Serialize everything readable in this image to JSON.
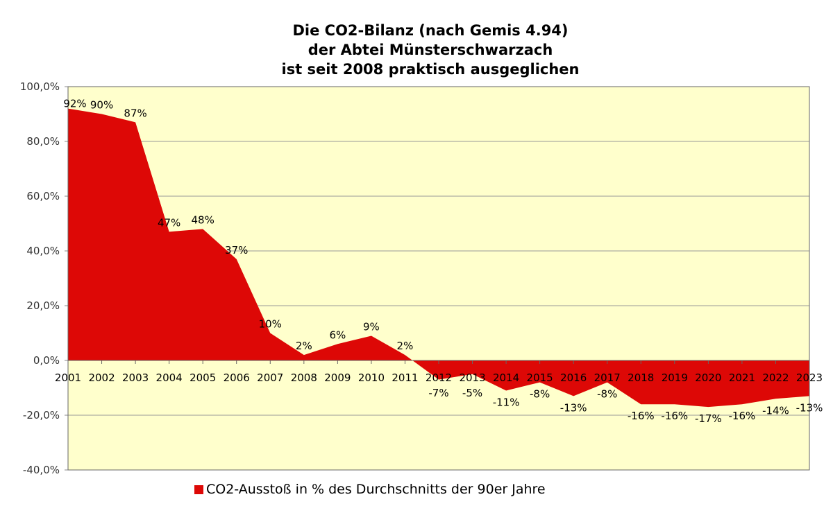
{
  "chart_data": {
    "type": "area",
    "title": [
      "Die CO2-Bilanz (nach Gemis 4.94)",
      "der Abtei Münsterschwarzach",
      "ist seit 2008 praktisch ausgeglichen"
    ],
    "categories": [
      "2001",
      "2002",
      "2003",
      "2004",
      "2005",
      "2006",
      "2007",
      "2008",
      "2009",
      "2010",
      "2011",
      "2012",
      "2013",
      "2014",
      "2015",
      "2016",
      "2017",
      "2018",
      "2019",
      "2020",
      "2021",
      "2022",
      "2023"
    ],
    "series": [
      {
        "name": "CO2-Ausstoß in % des Durchschnitts der 90er Jahre",
        "values": [
          92,
          90,
          87,
          47,
          48,
          37,
          10,
          2,
          6,
          9,
          2,
          -7,
          -5,
          -11,
          -8,
          -13,
          -8,
          -16,
          -16,
          -17,
          -16,
          -14,
          -13
        ]
      }
    ],
    "data_labels": [
      "92%",
      "90%",
      "87%",
      "47%",
      "48%",
      "37%",
      "10%",
      "2%",
      "6%",
      "9%",
      "2%",
      "-7%",
      "-5%",
      "-11%",
      "-8%",
      "-13%",
      "-8%",
      "-16%",
      "-16%",
      "-17%",
      "-16%",
      "-14%",
      "-13%"
    ],
    "yticks": [
      "100,0%",
      "80,0%",
      "60,0%",
      "40,0%",
      "20,0%",
      "0,0%",
      "-20,0%",
      "-40,0%"
    ],
    "ylim": [
      -40,
      100
    ],
    "xlabel": "",
    "ylabel": "",
    "grid": true,
    "legend": "bottom",
    "colors": {
      "fill": "#dd0806",
      "plot_bg": "#ffffcc",
      "grid": "#999999"
    }
  }
}
